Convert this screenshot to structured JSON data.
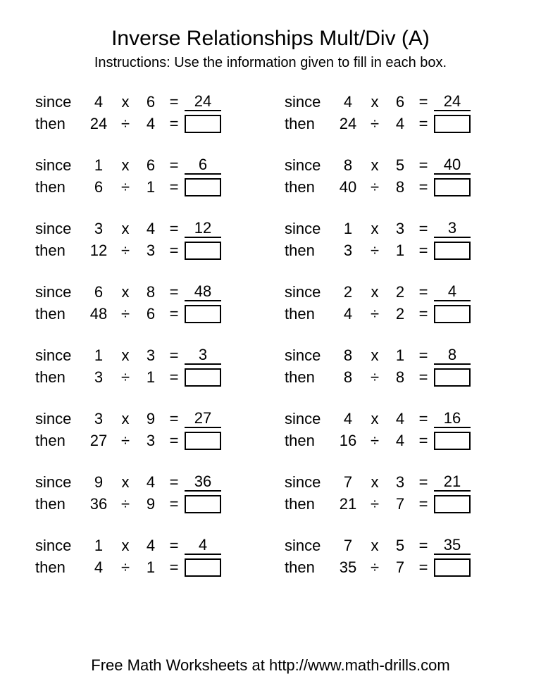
{
  "title": "Inverse Relationships Mult/Div (A)",
  "instructions": "Instructions: Use the information given to fill in each box.",
  "footer": "Free Math Worksheets at http://www.math-drills.com",
  "labels": {
    "since": "since",
    "then": "then"
  },
  "symbols": {
    "times": "x",
    "divide": "÷",
    "equals": "="
  },
  "style": {
    "bg": "#ffffff",
    "text": "#000000",
    "border": "#000000",
    "title_fontsize": 30,
    "body_fontsize": 22,
    "instr_fontsize": 20
  },
  "left": [
    {
      "a": 4,
      "b": 6,
      "prod": 24,
      "div_a": 24,
      "div_b": 4
    },
    {
      "a": 1,
      "b": 6,
      "prod": 6,
      "div_a": 6,
      "div_b": 1
    },
    {
      "a": 3,
      "b": 4,
      "prod": 12,
      "div_a": 12,
      "div_b": 3
    },
    {
      "a": 6,
      "b": 8,
      "prod": 48,
      "div_a": 48,
      "div_b": 6
    },
    {
      "a": 1,
      "b": 3,
      "prod": 3,
      "div_a": 3,
      "div_b": 1
    },
    {
      "a": 3,
      "b": 9,
      "prod": 27,
      "div_a": 27,
      "div_b": 3
    },
    {
      "a": 9,
      "b": 4,
      "prod": 36,
      "div_a": 36,
      "div_b": 9
    },
    {
      "a": 1,
      "b": 4,
      "prod": 4,
      "div_a": 4,
      "div_b": 1
    }
  ],
  "right": [
    {
      "a": 4,
      "b": 6,
      "prod": 24,
      "div_a": 24,
      "div_b": 4
    },
    {
      "a": 8,
      "b": 5,
      "prod": 40,
      "div_a": 40,
      "div_b": 8
    },
    {
      "a": 1,
      "b": 3,
      "prod": 3,
      "div_a": 3,
      "div_b": 1
    },
    {
      "a": 2,
      "b": 2,
      "prod": 4,
      "div_a": 4,
      "div_b": 2
    },
    {
      "a": 8,
      "b": 1,
      "prod": 8,
      "div_a": 8,
      "div_b": 8
    },
    {
      "a": 4,
      "b": 4,
      "prod": 16,
      "div_a": 16,
      "div_b": 4
    },
    {
      "a": 7,
      "b": 3,
      "prod": 21,
      "div_a": 21,
      "div_b": 7
    },
    {
      "a": 7,
      "b": 5,
      "prod": 35,
      "div_a": 35,
      "div_b": 7
    }
  ]
}
